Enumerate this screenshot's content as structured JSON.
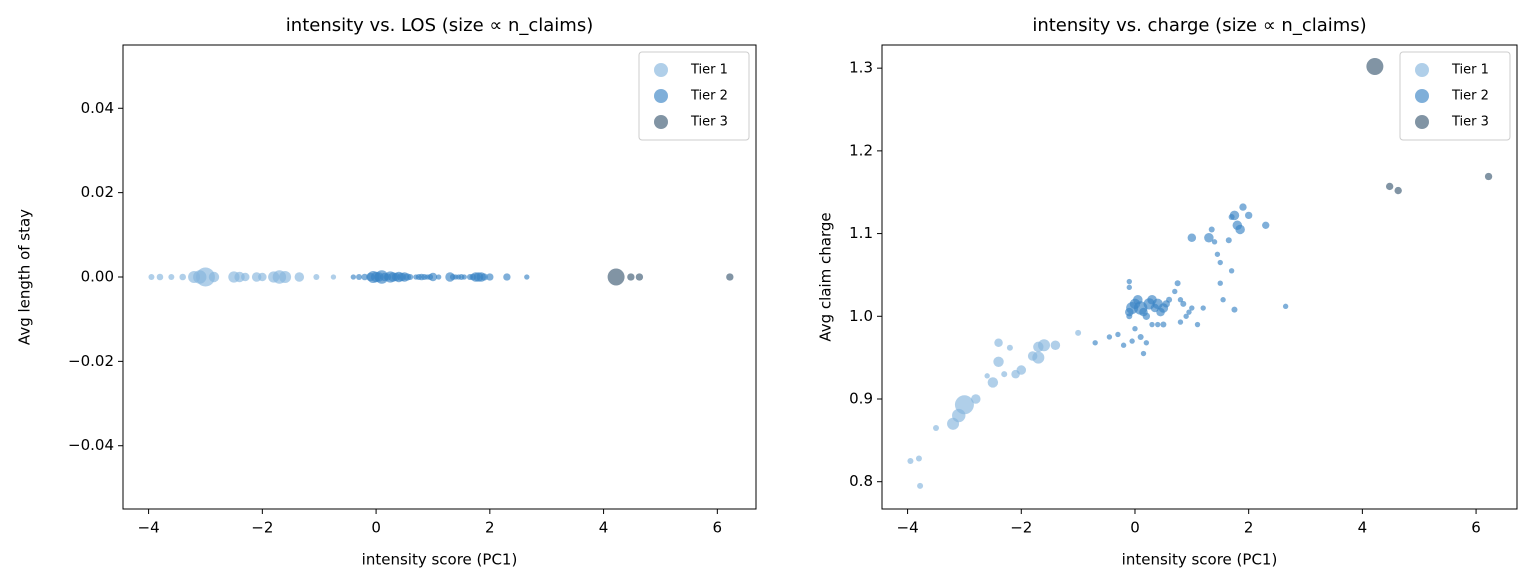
{
  "chart_data": [
    {
      "type": "scatter",
      "title": "intensity vs. LOS (size ∝ n_claims)",
      "xlabel": "intensity score (PC1)",
      "ylabel": "Avg length of stay",
      "xlim": [
        -4.45,
        6.68
      ],
      "ylim": [
        -0.055,
        0.055
      ],
      "xticks": [
        {
          "value": -4,
          "label": "−4"
        },
        {
          "value": -2,
          "label": "−2"
        },
        0,
        2,
        4,
        6
      ],
      "yticks": [
        {
          "value": -0.04,
          "label": "−0.04"
        },
        {
          "value": -0.02,
          "label": "−0.02"
        },
        {
          "value": 0,
          "label": "0.00"
        },
        0.02,
        0.04
      ],
      "legend": "upper right",
      "series": [
        {
          "name": "Tier 1",
          "color": "#86b6dd",
          "x": [
            -3.95,
            -3.8,
            -3.6,
            -3.4,
            -3.2,
            -3.1,
            -3.0,
            -2.85,
            -2.5,
            -2.4,
            -2.3,
            -2.1,
            -2.0,
            -1.8,
            -1.7,
            -1.6,
            -1.35,
            -1.05,
            -0.75
          ],
          "values": [
            0,
            0,
            0,
            0,
            0,
            0,
            0,
            0,
            0,
            0,
            0,
            0,
            0,
            0,
            0,
            0,
            0,
            0,
            0
          ],
          "sizes": [
            10,
            12,
            10,
            12,
            40,
            50,
            100,
            30,
            35,
            30,
            20,
            25,
            20,
            35,
            50,
            40,
            25,
            10,
            8
          ]
        },
        {
          "name": "Tier 2",
          "color": "#3b84c4",
          "x": [
            -0.4,
            -0.3,
            -0.2,
            -0.1,
            -0.05,
            0.0,
            0.05,
            0.1,
            0.15,
            0.2,
            0.25,
            0.3,
            0.35,
            0.4,
            0.45,
            0.5,
            0.55,
            0.6,
            0.7,
            0.75,
            0.8,
            0.85,
            0.9,
            0.95,
            1.0,
            1.1,
            1.3,
            1.35,
            1.4,
            1.45,
            1.5,
            1.55,
            1.65,
            1.7,
            1.75,
            1.8,
            1.85,
            1.9,
            2.0,
            2.3,
            2.65
          ],
          "values": [
            0,
            0,
            0,
            0,
            0,
            0,
            0,
            0,
            0,
            0,
            0,
            0,
            0,
            0,
            0,
            0,
            0,
            0,
            0,
            0,
            0,
            0,
            0,
            0,
            0,
            0,
            0,
            0,
            0,
            0,
            0,
            0,
            0,
            0,
            0,
            0,
            0,
            0,
            0,
            0,
            0
          ],
          "sizes": [
            8,
            10,
            12,
            20,
            40,
            30,
            25,
            50,
            20,
            15,
            35,
            25,
            20,
            30,
            20,
            25,
            15,
            10,
            8,
            10,
            12,
            10,
            8,
            10,
            20,
            8,
            25,
            10,
            8,
            8,
            10,
            8,
            10,
            12,
            25,
            25,
            25,
            15,
            15,
            15,
            8
          ]
        },
        {
          "name": "Tier 3",
          "color": "#3d5a73",
          "x": [
            4.22,
            4.48,
            4.63,
            6.22
          ],
          "values": [
            0,
            0,
            0,
            0
          ],
          "sizes": [
            80,
            15,
            15,
            15
          ]
        }
      ]
    },
    {
      "type": "scatter",
      "title": "intensity vs. charge (size ∝ n_claims)",
      "xlabel": "intensity score (PC1)",
      "ylabel": "Avg claim charge",
      "xlim": [
        -4.45,
        6.72
      ],
      "ylim": [
        0.767,
        1.328
      ],
      "xticks": [
        {
          "value": -4,
          "label": "−4"
        },
        {
          "value": -2,
          "label": "−2"
        },
        0,
        2,
        4,
        6
      ],
      "yticks": [
        0.8,
        0.9,
        {
          "value": 1.0,
          "label": "1.0"
        },
        1.1,
        1.2,
        1.3
      ],
      "legend": "upper right",
      "series": [
        {
          "name": "Tier 1",
          "color": "#86b6dd",
          "x": [
            -3.95,
            -3.8,
            -3.78,
            -3.5,
            -3.2,
            -3.1,
            -3.0,
            -2.8,
            -2.6,
            -2.5,
            -2.4,
            -2.4,
            -2.3,
            -2.2,
            -2.1,
            -2.0,
            -1.8,
            -1.7,
            -1.7,
            -1.6,
            -1.4,
            -1.0
          ],
          "values": [
            0.825,
            0.828,
            0.795,
            0.865,
            0.87,
            0.88,
            0.893,
            0.9,
            0.928,
            0.92,
            0.945,
            0.968,
            0.93,
            0.962,
            0.93,
            0.935,
            0.952,
            0.95,
            0.963,
            0.965,
            0.965,
            0.98
          ],
          "sizes": [
            10,
            10,
            10,
            10,
            40,
            50,
            100,
            25,
            8,
            30,
            30,
            20,
            10,
            10,
            20,
            25,
            25,
            40,
            30,
            40,
            25,
            10
          ]
        },
        {
          "name": "Tier 2",
          "color": "#3b84c4",
          "x": [
            -0.1,
            -0.1,
            -0.05,
            0.0,
            0.05,
            0.1,
            0.15,
            0.2,
            0.25,
            0.3,
            0.35,
            0.4,
            0.45,
            0.5,
            0.55,
            0.6,
            -0.3,
            -0.1,
            -0.1,
            0.0,
            -0.05,
            0.1,
            0.2,
            0.3,
            0.15,
            -0.2,
            0.4,
            0.5,
            0.7,
            0.75,
            0.8,
            0.85,
            0.9,
            0.95,
            1.0,
            1.1,
            1.3,
            1.35,
            1.4,
            1.45,
            1.5,
            1.5,
            1.55,
            1.65,
            1.7,
            1.75,
            1.8,
            1.85,
            1.9,
            2.0,
            1.7,
            1.75,
            2.3,
            2.65,
            -0.7,
            -0.45,
            0.8,
            1.0,
            1.2
          ],
          "values": [
            1.005,
            1.0,
            1.01,
            1.015,
            1.02,
            1.01,
            1.005,
            1.0,
            1.015,
            1.02,
            1.01,
            1.015,
            1.005,
            1.01,
            1.015,
            1.02,
            0.978,
            1.042,
            1.035,
            0.985,
            0.97,
            0.975,
            0.968,
            0.99,
            0.955,
            0.965,
            0.99,
            0.99,
            1.03,
            1.04,
            1.02,
            1.015,
            1.0,
            1.005,
            1.095,
            0.99,
            1.095,
            1.105,
            1.09,
            1.075,
            1.065,
            1.04,
            1.02,
            1.092,
            1.12,
            1.122,
            1.11,
            1.105,
            1.132,
            1.122,
            1.055,
            1.008,
            1.11,
            1.012,
            0.968,
            0.975,
            0.993,
            1.01,
            1.01
          ],
          "sizes": [
            20,
            10,
            40,
            30,
            25,
            50,
            20,
            15,
            35,
            25,
            20,
            30,
            20,
            25,
            15,
            10,
            8,
            8,
            8,
            8,
            8,
            10,
            8,
            8,
            8,
            8,
            8,
            10,
            8,
            10,
            8,
            10,
            8,
            8,
            20,
            8,
            25,
            10,
            8,
            8,
            8,
            8,
            8,
            10,
            10,
            25,
            25,
            25,
            15,
            15,
            8,
            10,
            15,
            8,
            8,
            8,
            8,
            8,
            8
          ]
        },
        {
          "name": "Tier 3",
          "color": "#3d5a73",
          "x": [
            4.22,
            4.48,
            4.63,
            6.22
          ],
          "values": [
            1.302,
            1.157,
            1.152,
            1.169
          ],
          "sizes": [
            80,
            15,
            15,
            15
          ]
        }
      ]
    }
  ]
}
